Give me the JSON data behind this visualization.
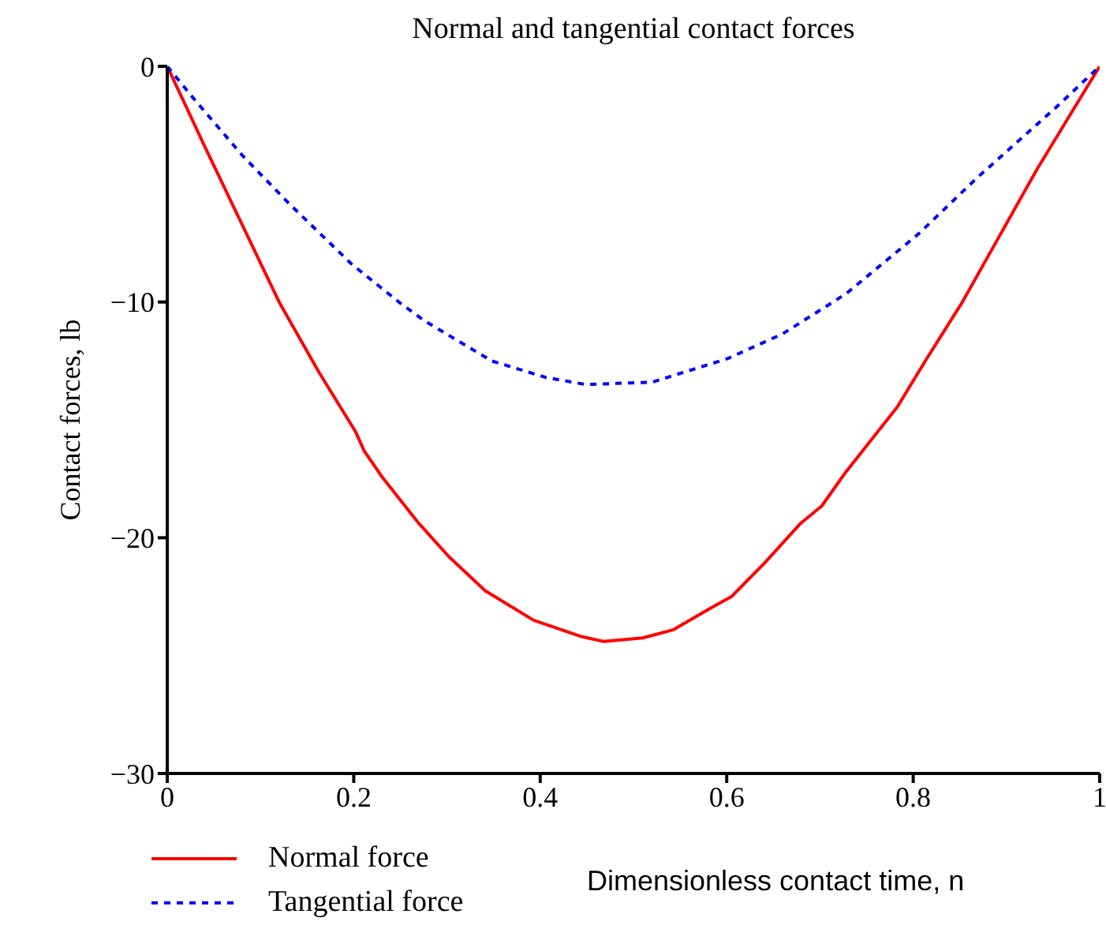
{
  "chart_data": {
    "type": "line",
    "title": "Normal and tangential contact forces",
    "xlabel": "Dimensionless contact time, n",
    "ylabel": "Contact forces, lb",
    "xlim": [
      0,
      1
    ],
    "xticks": [
      0,
      0.2,
      0.4,
      0.6,
      0.8,
      1
    ],
    "ylim": [
      -30,
      0
    ],
    "yticks": [
      0,
      -10,
      -20,
      -30
    ],
    "legend": "bottom left",
    "series": [
      {
        "name": "Normal force",
        "color": "#ff0000",
        "line_style": "solid",
        "x": [
          0,
          0.039,
          0.12,
          0.163,
          0.202,
          0.211,
          0.23,
          0.27,
          0.302,
          0.341,
          0.393,
          0.445,
          0.468,
          0.51,
          0.543,
          0.582,
          0.605,
          0.64,
          0.679,
          0.702,
          0.728,
          0.783,
          0.813,
          0.852,
          0.933,
          1
        ],
        "values": [
          0,
          -3.3,
          -10.0,
          -13.0,
          -15.5,
          -16.3,
          -17.4,
          -19.4,
          -20.8,
          -22.25,
          -23.5,
          -24.2,
          -24.4,
          -24.25,
          -23.9,
          -23.0,
          -22.5,
          -21.1,
          -19.4,
          -18.65,
          -17.2,
          -14.45,
          -12.5,
          -10.05,
          -4.35,
          0
        ]
      },
      {
        "name": "Tangential force",
        "color": "#0000ff",
        "line_style": "dotted",
        "x": [
          0,
          0.029,
          0.081,
          0.13,
          0.198,
          0.25,
          0.276,
          0.348,
          0.406,
          0.449,
          0.52,
          0.601,
          0.66,
          0.728,
          0.806,
          0.868,
          0.953,
          1
        ],
        "values": [
          0,
          -1.4,
          -3.8,
          -5.8,
          -8.4,
          -10.05,
          -10.8,
          -12.5,
          -13.2,
          -13.5,
          -13.4,
          -12.4,
          -11.35,
          -9.65,
          -7.1,
          -4.75,
          -1.75,
          0
        ]
      }
    ]
  }
}
